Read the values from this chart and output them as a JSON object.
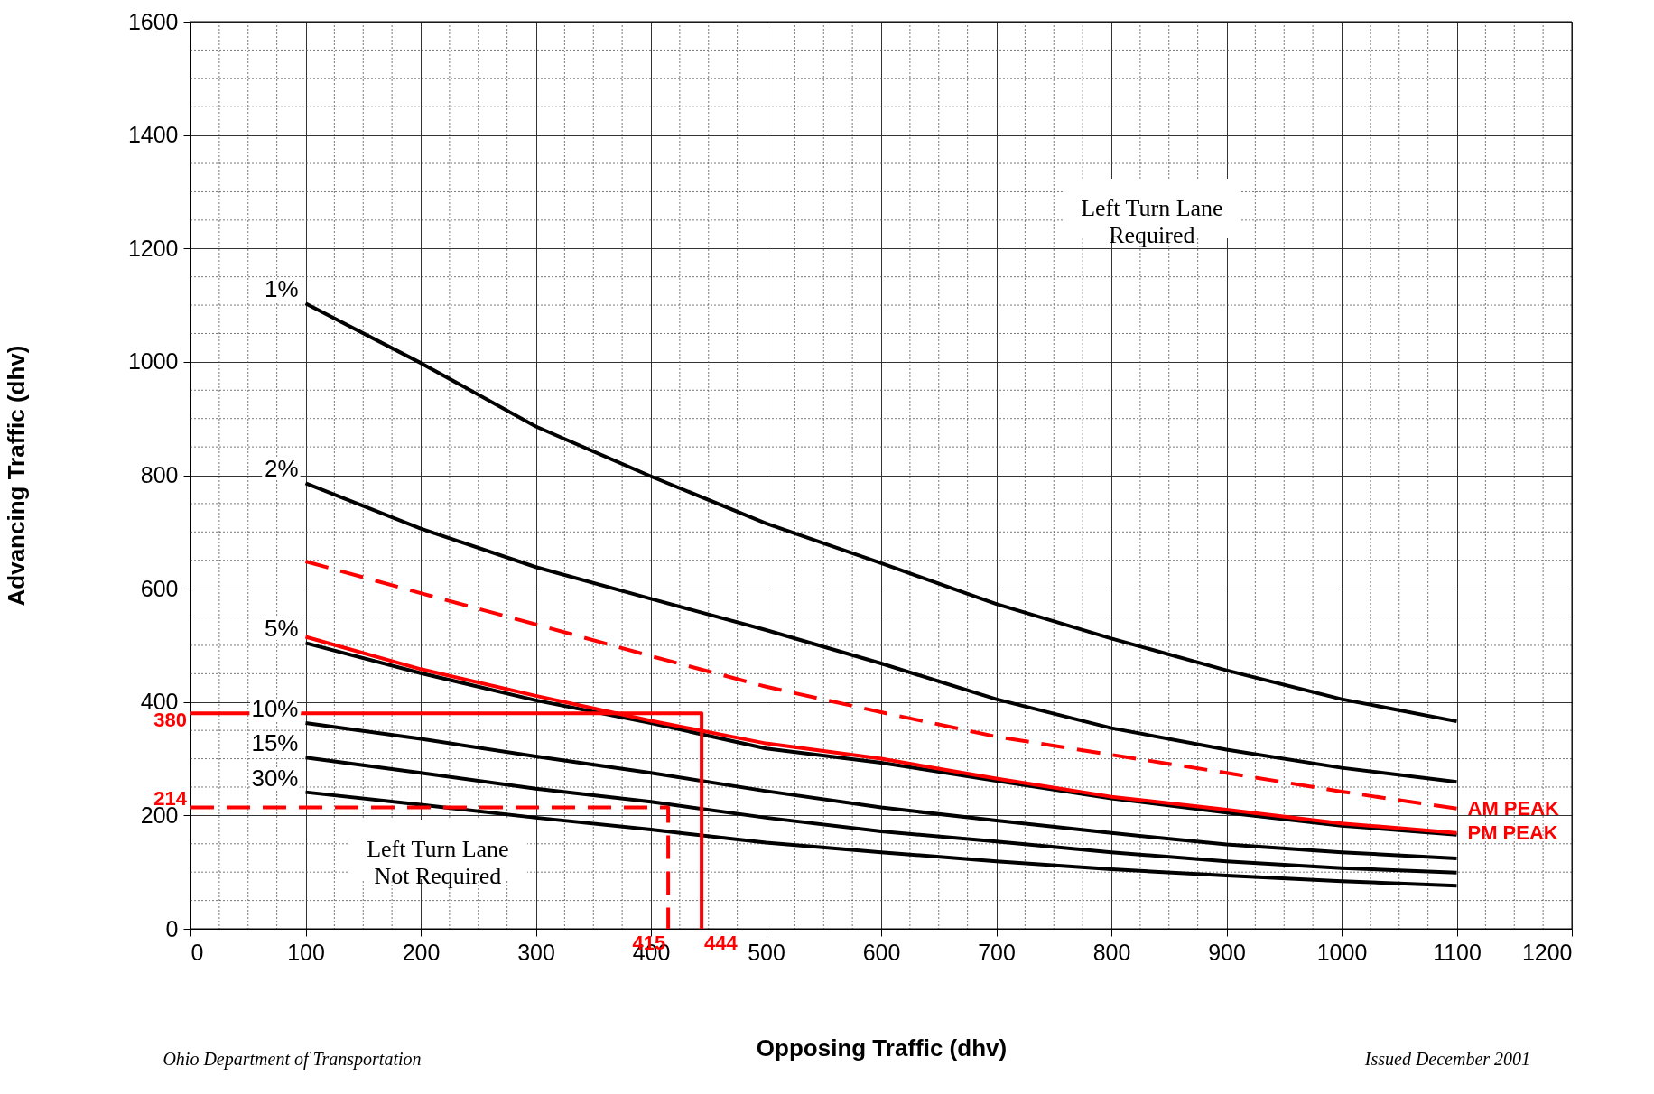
{
  "chart_data": {
    "type": "line",
    "xlabel": "Opposing Traffic (dhv)",
    "ylabel": "Advancing Traffic (dhv)",
    "x": [
      100,
      200,
      300,
      400,
      500,
      600,
      700,
      800,
      900,
      1000,
      1100
    ],
    "xlim": [
      0,
      1200
    ],
    "xticks": [
      0,
      100,
      200,
      300,
      400,
      500,
      600,
      700,
      800,
      900,
      1000,
      1100,
      1200
    ],
    "ylim": [
      0,
      1600
    ],
    "yticks": [
      0,
      200,
      400,
      600,
      800,
      1000,
      1200,
      1400,
      1600
    ],
    "grid": true,
    "legend": false,
    "marker": "none",
    "series": [
      {
        "name": "1%",
        "color": "#000000",
        "values": [
          1103,
          998,
          886,
          798,
          715,
          645,
          573,
          512,
          456,
          405,
          366
        ]
      },
      {
        "name": "2%",
        "color": "#000000",
        "values": [
          786,
          706,
          638,
          582,
          527,
          468,
          405,
          354,
          316,
          284,
          259
        ]
      },
      {
        "name": "5%",
        "color": "#000000",
        "values": [
          504,
          451,
          403,
          363,
          318,
          293,
          261,
          230,
          205,
          182,
          166
        ]
      },
      {
        "name": "10%",
        "color": "#000000",
        "values": [
          363,
          335,
          304,
          275,
          243,
          214,
          191,
          169,
          149,
          135,
          124
        ]
      },
      {
        "name": "15%",
        "color": "#000000",
        "values": [
          302,
          275,
          247,
          224,
          196,
          172,
          154,
          135,
          119,
          107,
          99
        ]
      },
      {
        "name": "30%",
        "color": "#000000",
        "values": [
          241,
          219,
          196,
          175,
          152,
          135,
          119,
          105,
          94,
          84,
          76
        ]
      },
      {
        "name": "AM PEAK",
        "color": "#ff0000",
        "line_style": "dashed",
        "values": [
          648,
          592,
          537,
          481,
          427,
          382,
          339,
          307,
          275,
          242,
          212
        ]
      },
      {
        "name": "PM PEAK",
        "color": "#ff0000",
        "line_style": "solid",
        "values": [
          515,
          458,
          411,
          367,
          327,
          300,
          265,
          233,
          210,
          186,
          169
        ]
      },
      {
        "color": "#ff0000",
        "line_style": "solid",
        "x": [
          0,
          444,
          444
        ],
        "values": [
          380,
          380,
          0
        ]
      },
      {
        "color": "#ff0000",
        "line_style": "dashed",
        "x": [
          0,
          415,
          415
        ],
        "values": [
          214,
          214,
          0
        ]
      }
    ],
    "annotations": [
      "Left Turn Lane\nRequired",
      "Left Turn Lane\nNot Required",
      {
        "text": "380",
        "x": 0,
        "y": 380
      },
      {
        "text": "214",
        "x": 0,
        "y": 214
      },
      {
        "text": "415",
        "x": 415,
        "y": 0
      },
      {
        "text": "444",
        "x": 444,
        "y": 0
      },
      "Ohio Department of Transportation",
      "Issued December 2001"
    ]
  }
}
